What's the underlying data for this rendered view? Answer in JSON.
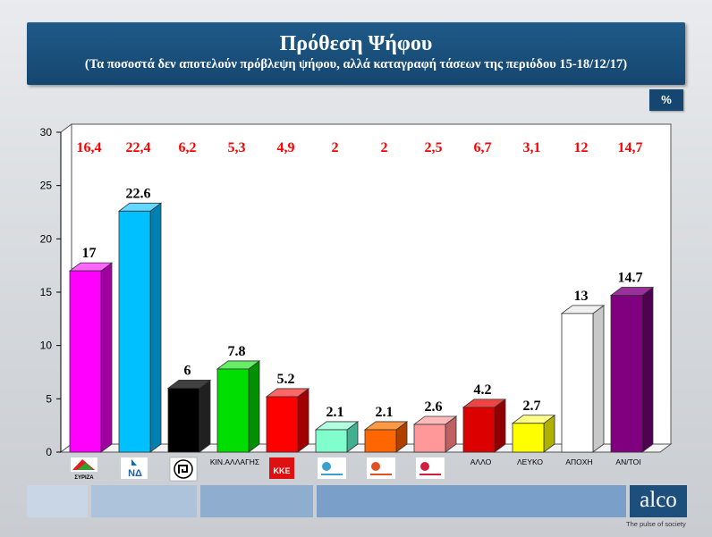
{
  "header": {
    "title": "Πρόθεση Ψήφου",
    "subtitle": "(Τα ποσοστά δεν αποτελούν πρόβλεψη ψήφου, αλλά καταγραφή τάσεων  της περιόδου 15-18/12/17)"
  },
  "unit_badge": "%",
  "footer": {
    "logo": "alco",
    "tagline": "The pulse of society"
  },
  "chart_data": {
    "type": "bar",
    "ylim": [
      0,
      30
    ],
    "yticks": [
      0,
      5,
      10,
      15,
      20,
      25,
      30
    ],
    "categories": [
      "ΣΥΡΙΖΑ",
      "ΝΔ",
      "",
      "ΚΙΝ.ΑΛΛΑΓΗΣ",
      "ΚΚΕ",
      "",
      "",
      "",
      "ΑΛΛΟ",
      "ΛΕΥΚΟ",
      "ΑΠΟΧΗ",
      "ΑΝ/ΤΟΙ"
    ],
    "values": [
      17,
      22.6,
      6,
      7.8,
      5.2,
      2.1,
      2.1,
      2.6,
      4.2,
      2.7,
      13,
      14.7
    ],
    "value_labels": [
      "17",
      "22.6",
      "6",
      "7.8",
      "5.2",
      "2.1",
      "2.1",
      "2.6",
      "4.2",
      "2.7",
      "13",
      "14.7"
    ],
    "previous_values": [
      "16,4",
      "22,4",
      "6,2",
      "5,3",
      "4,9",
      "2",
      "2",
      "2,5",
      "6,7",
      "3,1",
      "12",
      "14,7"
    ],
    "colors": [
      "#ff00ff",
      "#00c0ff",
      "#000000",
      "#00dd00",
      "#ff0000",
      "#80ffcc",
      "#ff6600",
      "#ff9999",
      "#dd0000",
      "#ffff00",
      "#ffffff",
      "#800080"
    ],
    "side_colors": [
      "#a000a0",
      "#0080b0",
      "#202020",
      "#009000",
      "#a00000",
      "#40b090",
      "#b04000",
      "#c06060",
      "#900000",
      "#b0b000",
      "#c8c8c8",
      "#500050"
    ],
    "top_colors": [
      "#ff66ff",
      "#66d8ff",
      "#404040",
      "#66ee66",
      "#ff6666",
      "#b0ffe0",
      "#ff9944",
      "#ffbbbb",
      "#ee4444",
      "#ffff88",
      "#f0f0f0",
      "#9a309a"
    ],
    "category_label_color": "#ff0000"
  }
}
